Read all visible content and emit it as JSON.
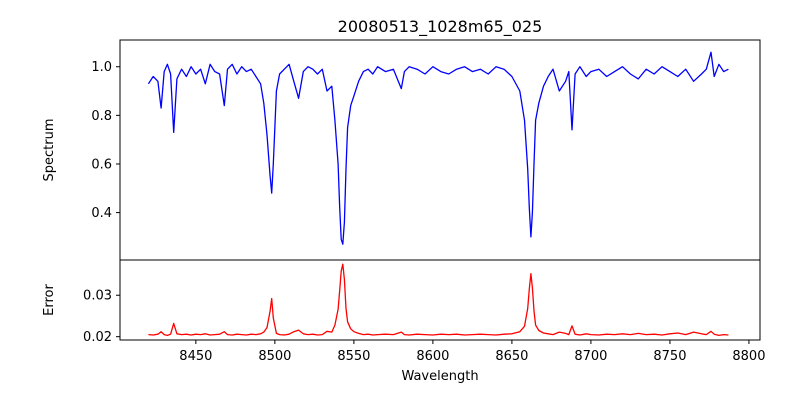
{
  "chart_data": [
    {
      "type": "line",
      "panel": "top",
      "title": "20080513_1028m65_025",
      "xlabel": "",
      "ylabel": "Spectrum",
      "xlim": [
        8402,
        8807
      ],
      "ylim": [
        0.205,
        1.11
      ],
      "yticks": [
        0.4,
        0.6,
        0.8,
        1.0
      ],
      "ytick_labels": [
        "0.4",
        "0.6",
        "0.8",
        "1.0"
      ],
      "grid": false,
      "series": [
        {
          "color": "#0000ff",
          "x": [
            8420,
            8423,
            8426,
            8428,
            8430,
            8432,
            8434,
            8436,
            8438,
            8441,
            8444,
            8447,
            8450,
            8453,
            8456,
            8459,
            8462,
            8465,
            8468,
            8470,
            8473,
            8476,
            8479,
            8482,
            8485,
            8488,
            8491,
            8493,
            8495,
            8497,
            8498,
            8499,
            8501,
            8503,
            8506,
            8509,
            8512,
            8515,
            8518,
            8521,
            8524,
            8527,
            8530,
            8533,
            8536,
            8538,
            8540,
            8541,
            8542,
            8543,
            8544,
            8545,
            8546,
            8548,
            8550,
            8553,
            8556,
            8559,
            8562,
            8565,
            8570,
            8575,
            8580,
            8582,
            8585,
            8590,
            8595,
            8600,
            8605,
            8610,
            8615,
            8620,
            8625,
            8630,
            8635,
            8640,
            8645,
            8650,
            8655,
            8658,
            8660,
            8661,
            8662,
            8663,
            8664,
            8665,
            8667,
            8670,
            8673,
            8676,
            8680,
            8684,
            8686,
            8688,
            8690,
            8693,
            8697,
            8700,
            8705,
            8710,
            8715,
            8720,
            8725,
            8730,
            8735,
            8740,
            8745,
            8750,
            8755,
            8760,
            8765,
            8770,
            8773,
            8776,
            8778,
            8781,
            8784,
            8787
          ],
          "y": [
            0.93,
            0.96,
            0.94,
            0.83,
            0.98,
            1.01,
            0.97,
            0.73,
            0.95,
            0.99,
            0.96,
            1.0,
            0.97,
            0.99,
            0.93,
            1.01,
            0.98,
            0.97,
            0.84,
            0.99,
            1.01,
            0.97,
            1.0,
            0.98,
            0.99,
            0.96,
            0.93,
            0.85,
            0.72,
            0.55,
            0.48,
            0.6,
            0.9,
            0.97,
            0.99,
            1.01,
            0.94,
            0.87,
            0.98,
            1.0,
            0.99,
            0.97,
            0.99,
            0.9,
            0.92,
            0.78,
            0.6,
            0.42,
            0.29,
            0.27,
            0.36,
            0.58,
            0.75,
            0.84,
            0.88,
            0.94,
            0.98,
            0.99,
            0.97,
            1.0,
            0.98,
            0.99,
            0.91,
            0.98,
            1.0,
            0.99,
            0.97,
            1.0,
            0.98,
            0.97,
            0.99,
            1.0,
            0.98,
            0.99,
            0.97,
            1.0,
            0.99,
            0.96,
            0.9,
            0.78,
            0.58,
            0.42,
            0.3,
            0.4,
            0.6,
            0.78,
            0.85,
            0.92,
            0.96,
            0.99,
            0.9,
            0.94,
            0.98,
            0.74,
            0.97,
            1.0,
            0.96,
            0.98,
            0.99,
            0.96,
            0.98,
            1.0,
            0.97,
            0.95,
            0.99,
            0.97,
            1.0,
            0.98,
            0.96,
            0.99,
            0.94,
            0.97,
            0.99,
            1.06,
            0.96,
            1.01,
            0.98,
            0.99
          ]
        }
      ]
    },
    {
      "type": "line",
      "panel": "bottom",
      "title": "",
      "xlabel": "Wavelength",
      "ylabel": "Error",
      "xlim": [
        8402,
        8807
      ],
      "ylim": [
        0.0192,
        0.0385
      ],
      "xticks": [
        8450,
        8500,
        8550,
        8600,
        8650,
        8700,
        8750,
        8800
      ],
      "xtick_labels": [
        "8450",
        "8500",
        "8550",
        "8600",
        "8650",
        "8700",
        "8750",
        "8800"
      ],
      "yticks": [
        0.02,
        0.03
      ],
      "ytick_labels": [
        "0.02",
        "0.03"
      ],
      "grid": false,
      "series": [
        {
          "color": "#ff0000",
          "x": [
            8420,
            8423,
            8426,
            8428,
            8430,
            8432,
            8434,
            8436,
            8438,
            8441,
            8444,
            8447,
            8450,
            8453,
            8456,
            8459,
            8462,
            8465,
            8468,
            8470,
            8473,
            8476,
            8479,
            8482,
            8485,
            8488,
            8491,
            8493,
            8495,
            8497,
            8498,
            8499,
            8501,
            8503,
            8506,
            8509,
            8512,
            8515,
            8518,
            8521,
            8524,
            8527,
            8530,
            8533,
            8536,
            8538,
            8540,
            8541,
            8542,
            8543,
            8544,
            8545,
            8546,
            8548,
            8550,
            8553,
            8556,
            8559,
            8562,
            8565,
            8570,
            8575,
            8580,
            8582,
            8585,
            8590,
            8595,
            8600,
            8605,
            8610,
            8615,
            8620,
            8625,
            8630,
            8635,
            8640,
            8645,
            8650,
            8655,
            8658,
            8660,
            8661,
            8662,
            8663,
            8664,
            8665,
            8667,
            8670,
            8673,
            8676,
            8680,
            8684,
            8686,
            8688,
            8690,
            8693,
            8697,
            8700,
            8705,
            8710,
            8715,
            8720,
            8725,
            8730,
            8735,
            8740,
            8745,
            8750,
            8755,
            8760,
            8765,
            8770,
            8773,
            8776,
            8778,
            8781,
            8784,
            8787
          ],
          "y": [
            0.0205,
            0.0204,
            0.0206,
            0.0212,
            0.0205,
            0.0203,
            0.0206,
            0.0232,
            0.0207,
            0.0205,
            0.0206,
            0.0204,
            0.0206,
            0.0205,
            0.0207,
            0.0204,
            0.0205,
            0.0206,
            0.0212,
            0.0205,
            0.0204,
            0.0206,
            0.0205,
            0.0204,
            0.0206,
            0.0205,
            0.0207,
            0.0211,
            0.0222,
            0.0262,
            0.0292,
            0.0245,
            0.0208,
            0.0205,
            0.0204,
            0.0206,
            0.0212,
            0.0216,
            0.0207,
            0.0205,
            0.0206,
            0.0204,
            0.0205,
            0.0213,
            0.0211,
            0.0228,
            0.0266,
            0.0312,
            0.0358,
            0.0375,
            0.0338,
            0.0268,
            0.0236,
            0.0219,
            0.0212,
            0.0208,
            0.0205,
            0.0206,
            0.0204,
            0.0205,
            0.0206,
            0.0205,
            0.0211,
            0.0205,
            0.0204,
            0.0206,
            0.0205,
            0.0204,
            0.0206,
            0.0205,
            0.0206,
            0.0204,
            0.0205,
            0.0206,
            0.0205,
            0.0204,
            0.0206,
            0.0207,
            0.0212,
            0.0225,
            0.0268,
            0.0315,
            0.0352,
            0.0318,
            0.0262,
            0.0228,
            0.0215,
            0.0209,
            0.0207,
            0.0205,
            0.0211,
            0.0208,
            0.0205,
            0.0226,
            0.0206,
            0.0204,
            0.0207,
            0.0205,
            0.0204,
            0.0206,
            0.0205,
            0.0207,
            0.0205,
            0.0208,
            0.0205,
            0.0206,
            0.0204,
            0.0207,
            0.0209,
            0.0205,
            0.0211,
            0.0207,
            0.0205,
            0.0213,
            0.0206,
            0.0203,
            0.0205,
            0.0204
          ]
        }
      ]
    }
  ]
}
